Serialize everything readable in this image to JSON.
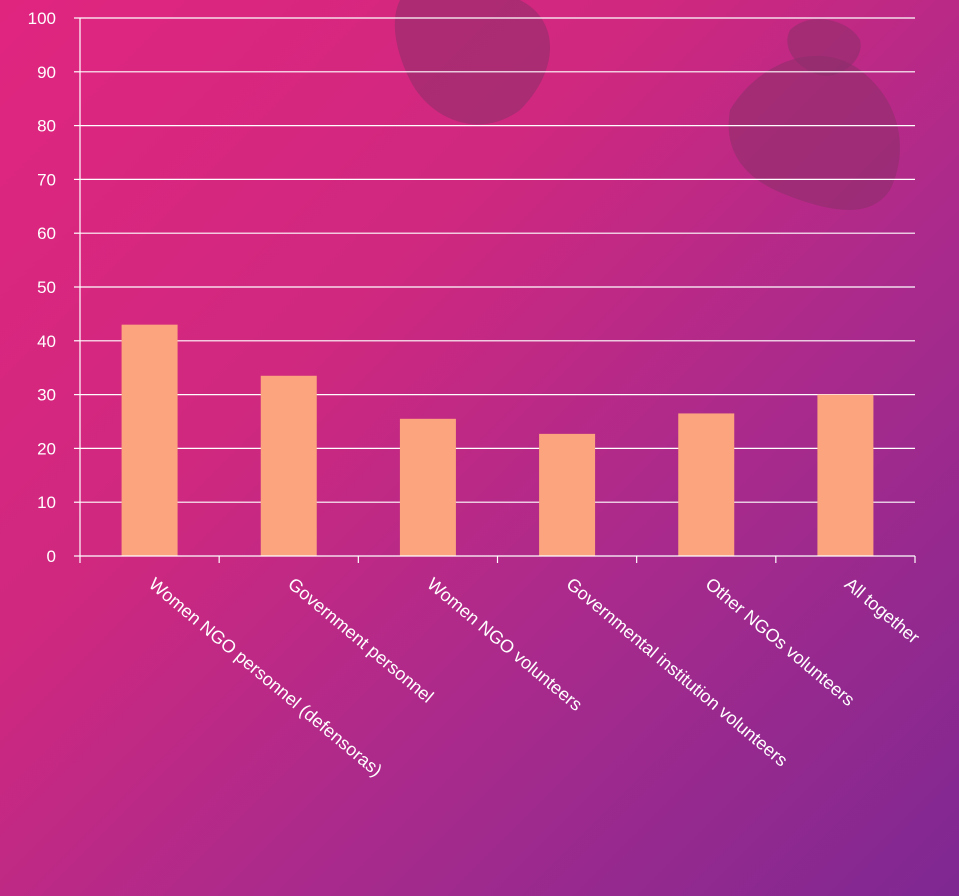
{
  "chart_data": {
    "type": "bar",
    "title": "",
    "xlabel": "",
    "ylabel": "",
    "categories": [
      "Women NGO personnel (defensoras)",
      "Government personnel",
      "Women NGO volunteers",
      "Governmental institution volunteers",
      "Other NGOs volunteers",
      "All together"
    ],
    "values": [
      43,
      33.5,
      25.5,
      22.7,
      26.5,
      30
    ],
    "ylim": [
      0,
      100
    ],
    "yticks": [
      "0",
      "10",
      "20",
      "30",
      "40",
      "50",
      "60",
      "70",
      "80",
      "90",
      "100"
    ],
    "grid": true,
    "legend": "none",
    "colors": {
      "bar": "#fba47e",
      "grid": "#ffffff",
      "text": "#ffffff"
    }
  }
}
